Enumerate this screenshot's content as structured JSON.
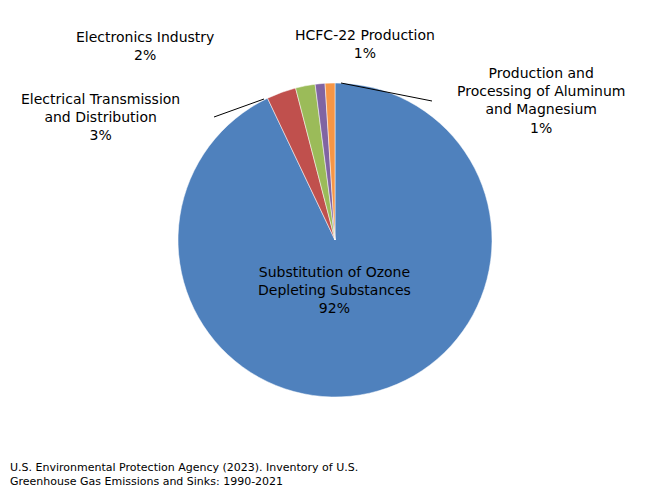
{
  "chart_data": {
    "type": "pie",
    "categories": [
      "Substitution of Ozone Depleting Substances",
      "Electrical Transmission and Distribution",
      "Electronics Industry",
      "HCFC-22 Production",
      "Production and Processing of Aluminum and Magnesium"
    ],
    "values": [
      92,
      3,
      2,
      1,
      1
    ],
    "value_labels": [
      "92%",
      "3%",
      "2%",
      "1%",
      "1%"
    ],
    "colors": [
      "#4f81bd",
      "#c0504d",
      "#9bbb59",
      "#8064a2",
      "#f79646"
    ],
    "data_labels": true,
    "source": "U.S. Environmental Protection Agency (2023). Inventory of U.S. Greenhouse Gas Emissions and Sinks: 1990-2021"
  }
}
